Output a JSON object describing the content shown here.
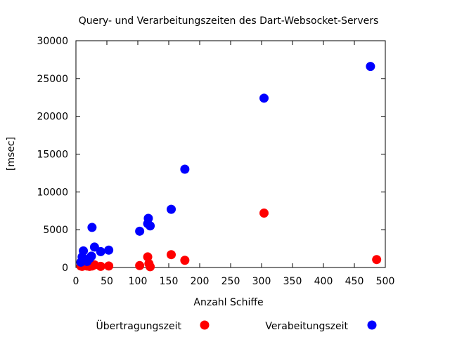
{
  "chart_data": {
    "type": "scatter",
    "title": "Query- und Verarbeitungszeiten des Dart-Websocket-Servers",
    "xlabel": "Anzahl Schiffe",
    "ylabel": "[msec]",
    "xlim": [
      0,
      500
    ],
    "ylim": [
      0,
      30000
    ],
    "xticks": [
      "0",
      "50",
      "100",
      "150",
      "200",
      "250",
      "300",
      "350",
      "400",
      "450",
      "500"
    ],
    "yticks": [
      "0",
      "5000",
      "10000",
      "15000",
      "20000",
      "25000",
      "30000"
    ],
    "grid": false,
    "legend_position": "bottom",
    "series": [
      {
        "name": "Übertragungszeit",
        "color": "#ff0000",
        "points": [
          {
            "x": 8,
            "y": 200
          },
          {
            "x": 10,
            "y": 150
          },
          {
            "x": 12,
            "y": 300
          },
          {
            "x": 15,
            "y": 250
          },
          {
            "x": 18,
            "y": 200
          },
          {
            "x": 22,
            "y": 150
          },
          {
            "x": 26,
            "y": 200
          },
          {
            "x": 30,
            "y": 350
          },
          {
            "x": 40,
            "y": 150
          },
          {
            "x": 53,
            "y": 200
          },
          {
            "x": 103,
            "y": 250
          },
          {
            "x": 116,
            "y": 1400
          },
          {
            "x": 118,
            "y": 500
          },
          {
            "x": 120,
            "y": 100
          },
          {
            "x": 154,
            "y": 1700
          },
          {
            "x": 176,
            "y": 950
          },
          {
            "x": 304,
            "y": 7200
          },
          {
            "x": 486,
            "y": 1050
          }
        ]
      },
      {
        "name": "Verabeitungszeit",
        "color": "#0000ff",
        "points": [
          {
            "x": 8,
            "y": 700
          },
          {
            "x": 10,
            "y": 1400
          },
          {
            "x": 12,
            "y": 2200
          },
          {
            "x": 15,
            "y": 1000
          },
          {
            "x": 18,
            "y": 800
          },
          {
            "x": 22,
            "y": 1200
          },
          {
            "x": 25,
            "y": 1500
          },
          {
            "x": 26,
            "y": 5300
          },
          {
            "x": 30,
            "y": 2700
          },
          {
            "x": 40,
            "y": 2100
          },
          {
            "x": 53,
            "y": 2300
          },
          {
            "x": 103,
            "y": 4800
          },
          {
            "x": 116,
            "y": 5800
          },
          {
            "x": 117,
            "y": 6500
          },
          {
            "x": 120,
            "y": 5500
          },
          {
            "x": 154,
            "y": 7700
          },
          {
            "x": 176,
            "y": 13000
          },
          {
            "x": 304,
            "y": 22400
          },
          {
            "x": 476,
            "y": 26600
          }
        ]
      }
    ]
  }
}
